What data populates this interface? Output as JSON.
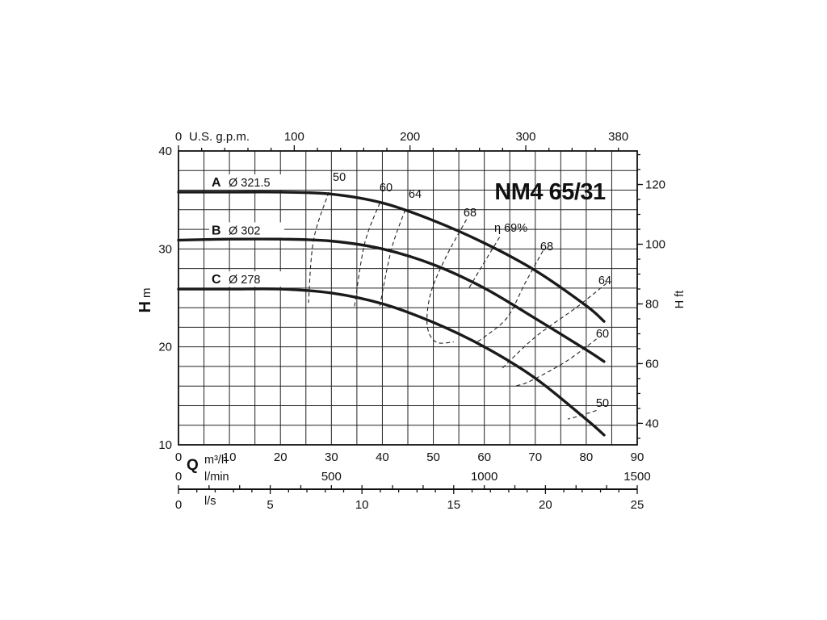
{
  "chart_data": {
    "type": "line",
    "title": "NM4 65/31",
    "ylabel": "H",
    "ylabel_unit": "m",
    "y2label": "H ft",
    "xlabel": "Q",
    "xlabel_unit": "m³/h",
    "xlim": [
      0,
      90
    ],
    "ylim": [
      10,
      40
    ],
    "x_ticks": [
      "0",
      "10",
      "20",
      "30",
      "40",
      "50",
      "60",
      "70",
      "80",
      "90"
    ],
    "y_ticks": [
      "10",
      "20",
      "30",
      "40"
    ],
    "y2_ticks": [
      "40",
      "60",
      "80",
      "100",
      "120"
    ],
    "top_axis": {
      "label": "U.S. g.p.m.",
      "ticks": [
        "0",
        "100",
        "200",
        "300",
        "380"
      ]
    },
    "lmin_axis": {
      "label": "l/min",
      "ticks": [
        "0",
        "500",
        "1000",
        "1500"
      ]
    },
    "ls_axis": {
      "label": "l/s",
      "ticks": [
        "0",
        "5",
        "10",
        "15",
        "20",
        "25"
      ]
    },
    "grid": true,
    "series": [
      {
        "letter": "A",
        "name": "Ø 321.5",
        "x": [
          0,
          10,
          20,
          30,
          40,
          50,
          60,
          70,
          80,
          83.5
        ],
        "y": [
          35.8,
          35.8,
          35.8,
          35.6,
          34.7,
          32.9,
          30.6,
          27.8,
          24.2,
          22.6
        ]
      },
      {
        "letter": "B",
        "name": "Ø 302",
        "x": [
          0,
          10,
          20,
          30,
          40,
          50,
          60,
          70,
          80,
          83.5
        ],
        "y": [
          30.9,
          31.0,
          31.0,
          30.8,
          30.0,
          28.4,
          26.0,
          22.9,
          19.7,
          18.5
        ]
      },
      {
        "letter": "C",
        "name": "Ø 278",
        "x": [
          0,
          10,
          20,
          30,
          40,
          50,
          60,
          70,
          80,
          83.5
        ],
        "y": [
          25.9,
          25.9,
          25.9,
          25.5,
          24.4,
          22.5,
          20.0,
          16.8,
          12.6,
          11.0
        ]
      }
    ],
    "efficiency_label": "η 69%",
    "efficiency_curves": [
      {
        "label": "50",
        "x": [
          29.5,
          26.5,
          25.5
        ],
        "y": [
          35.8,
          30.9,
          24.5
        ]
      },
      {
        "label": "60",
        "x": [
          39.5,
          36.5,
          34.5
        ],
        "y": [
          34.7,
          30.5,
          24.0
        ]
      },
      {
        "label": "64",
        "x": [
          44.5,
          41.8,
          39.5
        ],
        "y": [
          34.0,
          30.0,
          24.2
        ]
      },
      {
        "label": "68",
        "x": [
          56.5,
          52.5,
          49.5,
          48.8,
          50.5,
          54.0
        ],
        "y": [
          33.0,
          29.2,
          25.5,
          22.2,
          20.5,
          20.5
        ]
      },
      {
        "label": "η 69%",
        "x": [
          63.0,
          59.5,
          57.0
        ],
        "y": [
          31.2,
          28.2,
          26.0
        ]
      },
      {
        "label": "68",
        "x": [
          71.5,
          68.0,
          64.5,
          60.0,
          58.5
        ],
        "y": [
          29.8,
          26.5,
          23.0,
          21.0,
          20.5
        ]
      },
      {
        "label": "64",
        "x": [
          84.0,
          78.0,
          70.0,
          63.5
        ],
        "y": [
          26.5,
          24.0,
          21.0,
          17.8
        ]
      },
      {
        "label": "60",
        "x": [
          82.0,
          76.0,
          69.0,
          66.0
        ],
        "y": [
          20.8,
          18.5,
          16.5,
          16.0
        ]
      },
      {
        "label": "50",
        "x": [
          82.0,
          77.0,
          76.5
        ],
        "y": [
          13.5,
          12.7,
          12.7
        ]
      }
    ]
  }
}
